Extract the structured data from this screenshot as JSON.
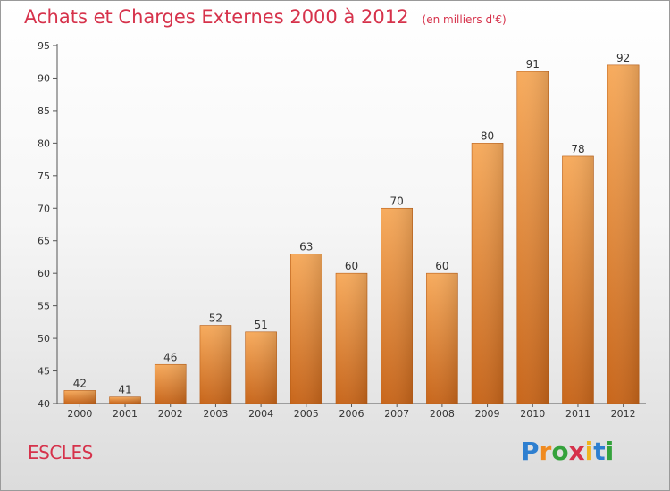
{
  "chart_data": {
    "type": "bar",
    "title": "Achats et Charges Externes 2000 à 2012",
    "subtitle": "(en milliers d'€)",
    "categories": [
      "2000",
      "2001",
      "2002",
      "2003",
      "2004",
      "2005",
      "2006",
      "2007",
      "2008",
      "2009",
      "2010",
      "2011",
      "2012"
    ],
    "values": [
      42,
      41,
      46,
      52,
      51,
      63,
      60,
      70,
      60,
      80,
      91,
      78,
      92
    ],
    "ylim": [
      40,
      95
    ],
    "yticks": [
      40,
      45,
      50,
      55,
      60,
      65,
      70,
      75,
      80,
      85,
      90,
      95
    ],
    "xlabel": "",
    "ylabel": "",
    "grid": false,
    "data_labels": true,
    "bar_color": "#f0923a",
    "bar_color_light": "#f7ab5d",
    "bar_color_dark": "#c8661b"
  },
  "commune_name": "ESCLES",
  "logo": {
    "text": "Proxiti"
  },
  "colors": {
    "title": "#d6324b",
    "axis": "#555555",
    "label_text": "#333333"
  }
}
